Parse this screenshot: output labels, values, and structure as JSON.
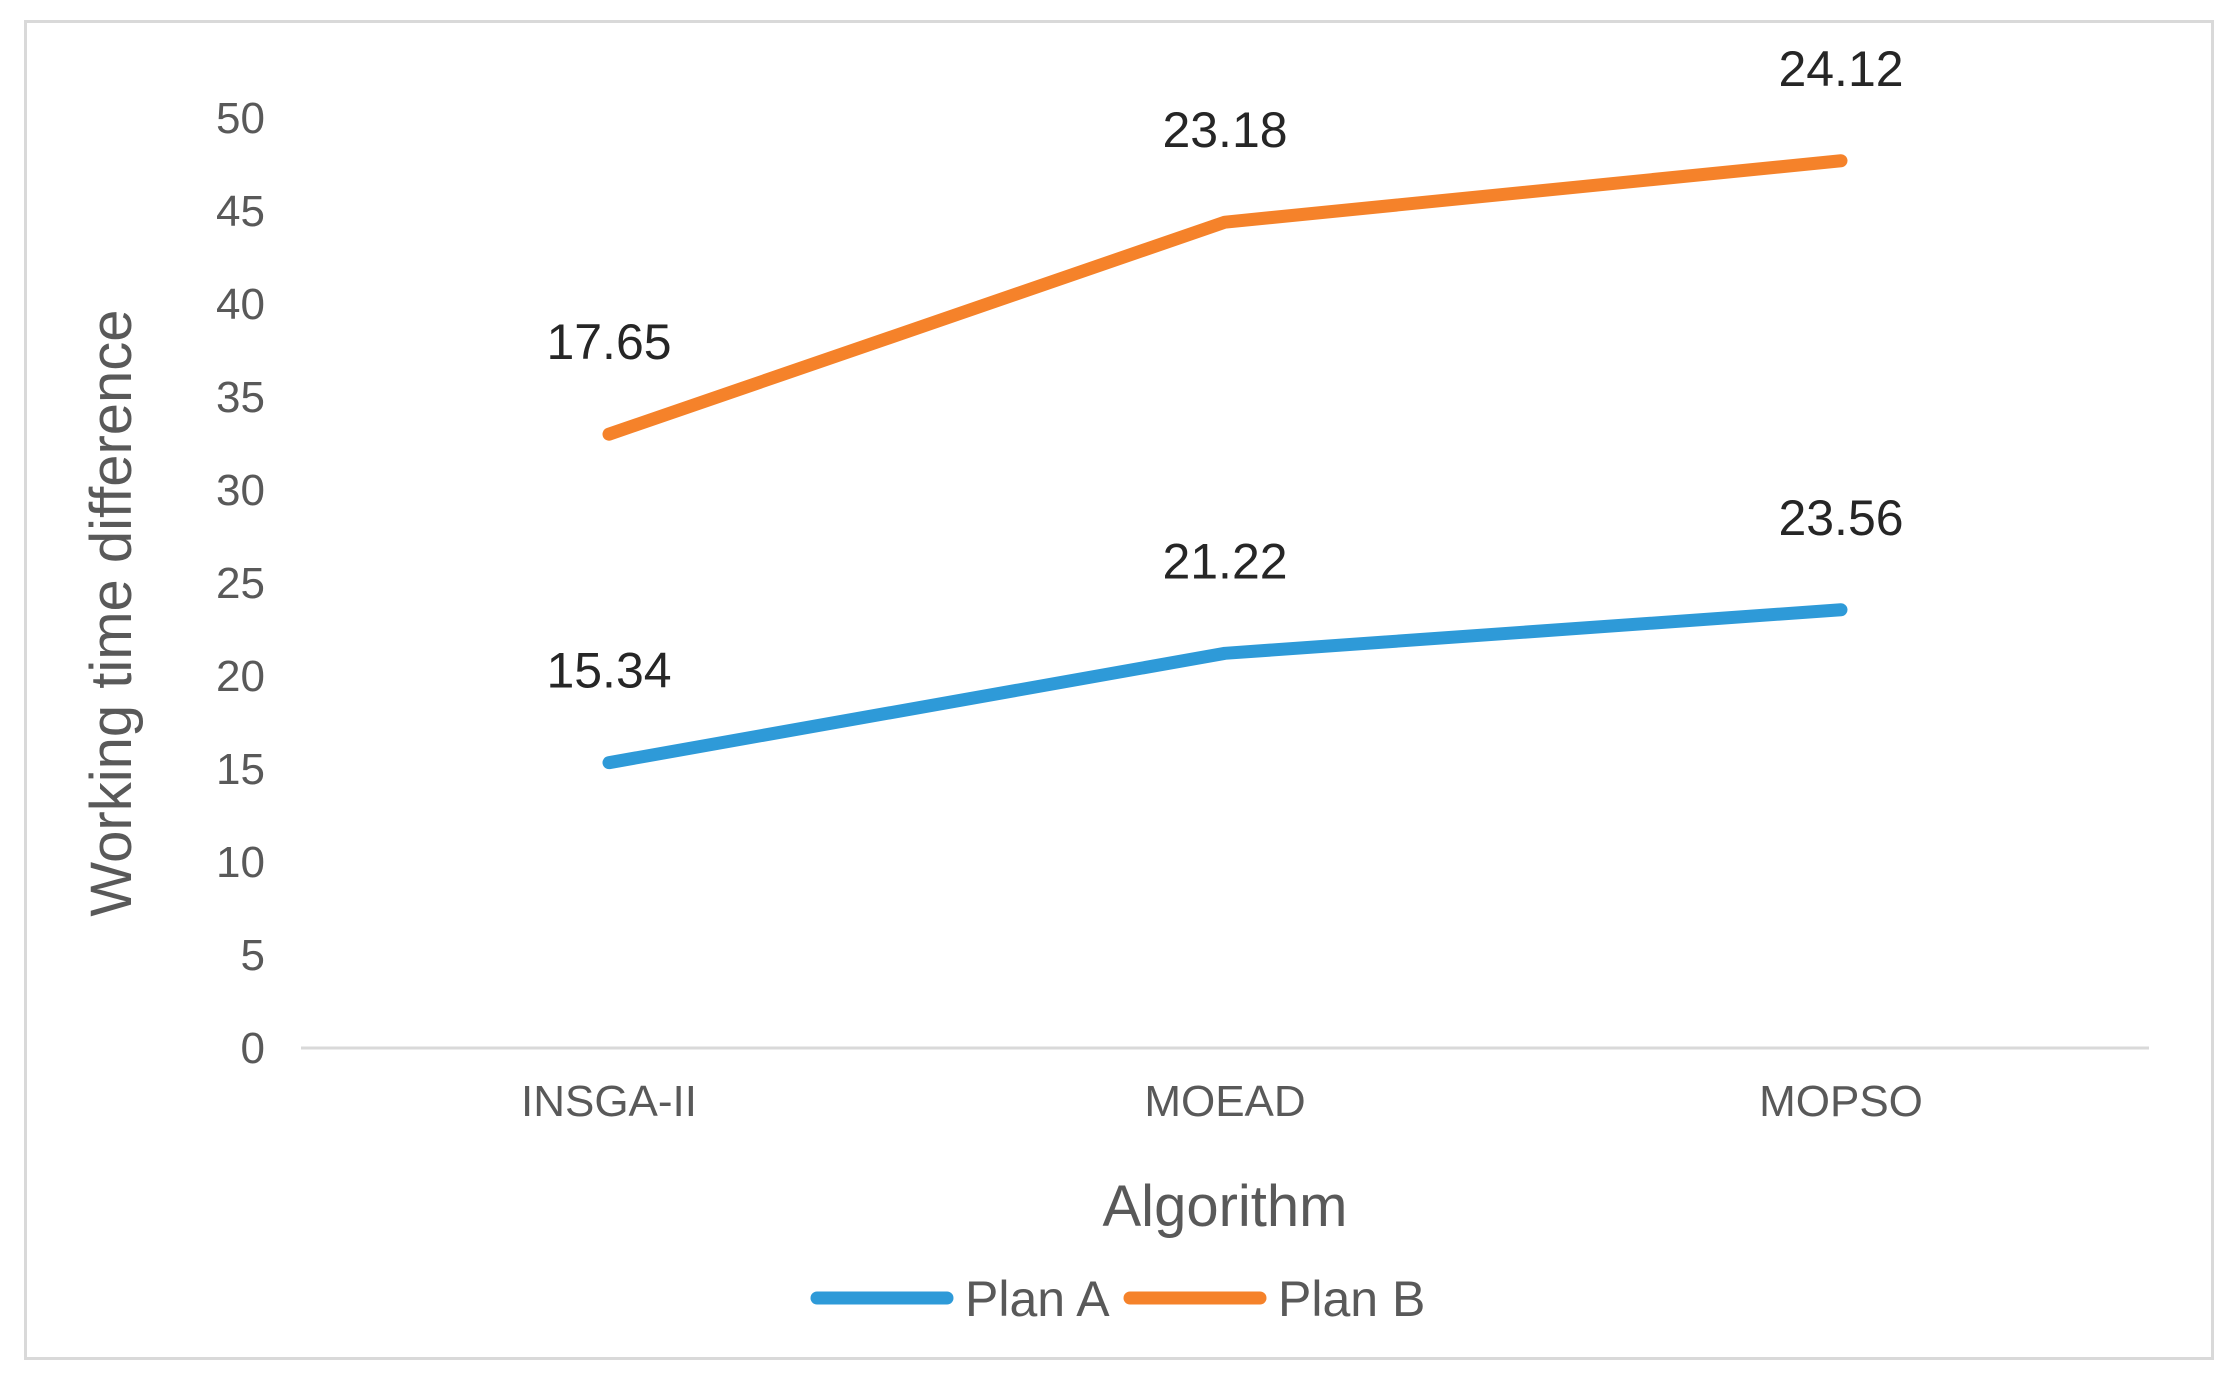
{
  "chart_data": {
    "type": "line",
    "title": "",
    "xlabel": "Algorithm",
    "ylabel": "Working time difference",
    "categories": [
      "INSGA-II",
      "MOEAD",
      "MOPSO"
    ],
    "ylim": [
      0,
      50
    ],
    "yticks": [
      0,
      5,
      10,
      15,
      20,
      25,
      30,
      35,
      40,
      45,
      50
    ],
    "grid": false,
    "legend": "bottom",
    "series": [
      {
        "name": "Plan A",
        "color": "#2E9AD8",
        "values": [
          15.34,
          21.22,
          23.56
        ],
        "labels": [
          "15.34",
          "21.22",
          "23.56"
        ]
      },
      {
        "name": "Plan B",
        "color": "#F5822A",
        "values": [
          33,
          44.4,
          47.7
        ],
        "labels": [
          "17.65",
          "23.18",
          "24.12"
        ]
      }
    ]
  }
}
